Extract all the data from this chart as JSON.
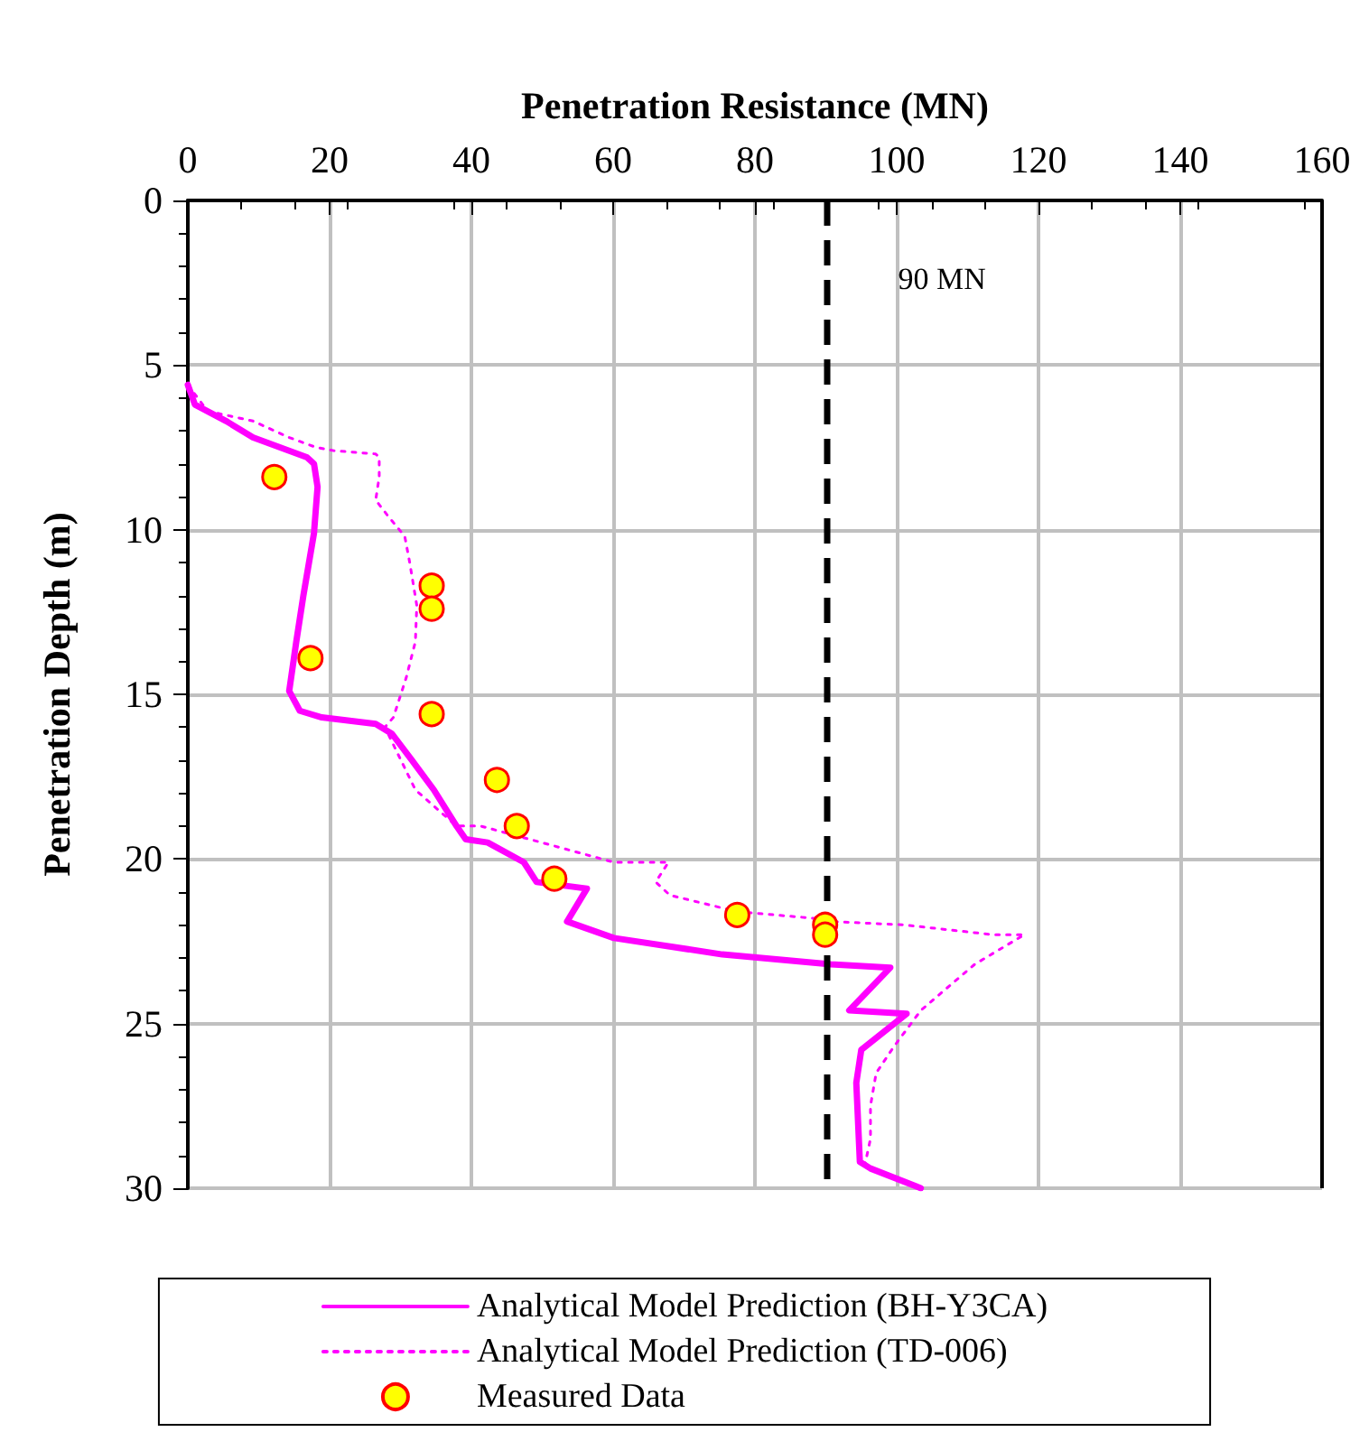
{
  "chart_data": {
    "type": "line",
    "xlabel": "Penetration Resistance (MN)",
    "ylabel": "Penetration Depth (m)",
    "xlim": [
      0,
      160
    ],
    "xticks": [
      0,
      20,
      40,
      60,
      80,
      100,
      120,
      140,
      160
    ],
    "ylim": [
      30,
      0
    ],
    "yticks": [
      0,
      5,
      10,
      15,
      20,
      25,
      30
    ],
    "grid": true,
    "legend": "bottom",
    "ref_lines": [
      {
        "axis": "x",
        "value": 90,
        "label": "90 MN",
        "color": "#000000",
        "line_style": "dashed"
      }
    ],
    "series": [
      {
        "name": "Analytical Model Prediction (BH-Y3CA)",
        "color": "#ff00ff",
        "line_style": "solid",
        "marker": "none",
        "x": [
          0,
          1,
          5.4,
          9.2,
          16.8,
          17.8,
          18.3,
          17.8,
          16.3,
          15.3,
          14.3,
          15.8,
          18.9,
          26.5,
          28.8,
          31.6,
          34.7,
          37.9,
          39.2,
          42.3,
          47.4,
          49.2,
          56.3,
          53.5,
          60.1,
          75.4,
          90.7,
          99.1,
          93.3,
          101.4,
          95,
          94.3,
          94.8,
          96.3,
          103.4
        ],
        "values": [
          5.6,
          6.2,
          6.7,
          7.2,
          7.8,
          8.0,
          8.7,
          10.1,
          12.0,
          13.4,
          14.9,
          15.5,
          15.7,
          15.9,
          16.2,
          17.0,
          17.9,
          19.0,
          19.4,
          19.5,
          20.1,
          20.7,
          20.9,
          21.9,
          22.4,
          22.9,
          23.2,
          23.3,
          24.6,
          24.7,
          25.8,
          26.8,
          29.2,
          29.4,
          30.0
        ]
      },
      {
        "name": "Analytical Model Prediction (TD-006)",
        "color": "#ff00ff",
        "line_style": "dotted",
        "marker": "none",
        "x": [
          0,
          2.8,
          9.2,
          14.3,
          18.1,
          20.6,
          26.5,
          27.0,
          27.0,
          26.5,
          28.3,
          30.6,
          31.3,
          32.3,
          32.1,
          30.8,
          29.0,
          27.8,
          32.1,
          37.9,
          41.3,
          49.9,
          60.1,
          67.8,
          66,
          68,
          77.5,
          88.2,
          90.7,
          100.9,
          113.6,
          118,
          111,
          103.4,
          99.6,
          97.1,
          96.3,
          96.3,
          95.5
        ],
        "values": [
          5.6,
          6.4,
          6.7,
          7.2,
          7.5,
          7.6,
          7.7,
          7.8,
          8.4,
          9.1,
          9.6,
          10.2,
          11.0,
          12.3,
          13.4,
          14.5,
          15.7,
          16.0,
          17.9,
          19.0,
          19.0,
          19.5,
          20.1,
          20.1,
          20.7,
          21.1,
          21.6,
          21.8,
          21.9,
          22.0,
          22.3,
          22.3,
          23.2,
          24.6,
          25.7,
          26.5,
          27.5,
          28.5,
          29.3
        ]
      },
      {
        "name": "Measured Data",
        "type": "scatter",
        "color": "#ffff00",
        "marker": "circle",
        "x": [
          12.2,
          34.4,
          34.4,
          17.3,
          34.4,
          43.6,
          46.4,
          51.7,
          77.5,
          89.9,
          89.9
        ],
        "values": [
          8.4,
          11.7,
          12.4,
          13.9,
          15.6,
          17.6,
          19.0,
          20.6,
          21.7,
          22.0,
          22.3
        ]
      }
    ]
  }
}
